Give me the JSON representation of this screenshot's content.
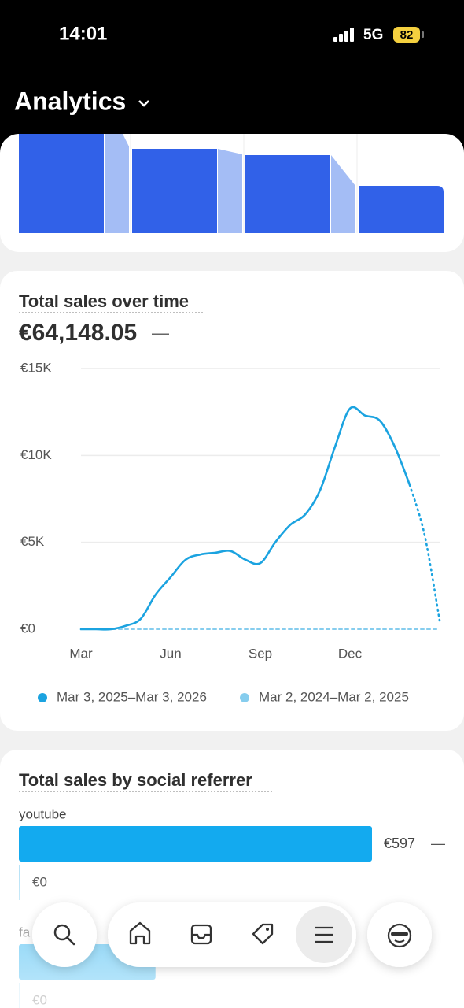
{
  "status_bar": {
    "time": "14:01",
    "network": "5G",
    "battery": "82"
  },
  "header": {
    "title": "Analytics"
  },
  "sales_chart": {
    "type": "line",
    "title": "Total sales over time",
    "total": "€64,148.05",
    "change": "—",
    "categories": [
      "Mar",
      null,
      null,
      null,
      null,
      null,
      "Jun",
      null,
      null,
      null,
      null,
      null,
      "Sep",
      null,
      null,
      null,
      null,
      null,
      "Dec",
      null,
      null,
      null,
      null,
      null,
      null
    ],
    "series": [
      {
        "name": "Mar 3, 2025–Mar 3, 2026",
        "color": "#1ba3e0",
        "values": [
          0,
          0,
          0,
          200,
          600,
          2000,
          3000,
          4000,
          4300,
          4400,
          4500,
          4000,
          3800,
          5000,
          6000,
          6600,
          8000,
          10500,
          12700,
          12300,
          12000,
          10500,
          8300,
          5400,
          500
        ]
      },
      {
        "name": "Mar 2, 2024–Mar 2, 2025",
        "color": "#86cdee",
        "values": [
          0,
          0,
          0,
          0,
          0,
          0,
          0,
          0,
          0,
          0,
          0,
          0,
          0,
          0,
          0,
          0,
          0,
          0,
          0,
          0,
          0,
          0,
          0,
          0,
          0
        ]
      }
    ],
    "ylim": [
      0,
      15000
    ],
    "yticks": [
      {
        "value": 0,
        "label": "€0"
      },
      {
        "value": 5000,
        "label": "€5K"
      },
      {
        "value": 10000,
        "label": "€10K"
      },
      {
        "value": 15000,
        "label": "€15K"
      }
    ],
    "grid": true
  },
  "referrers": {
    "title": "Total sales by social referrer",
    "rows": [
      {
        "name": "youtube",
        "value": 597,
        "value_label": "€597",
        "change": "—",
        "previous": 0,
        "previous_label": "€0",
        "color": "#13aaef"
      },
      {
        "name": "fa",
        "value": 231,
        "previous": 0,
        "previous_label": "€0",
        "color": "#13aaef"
      }
    ]
  }
}
